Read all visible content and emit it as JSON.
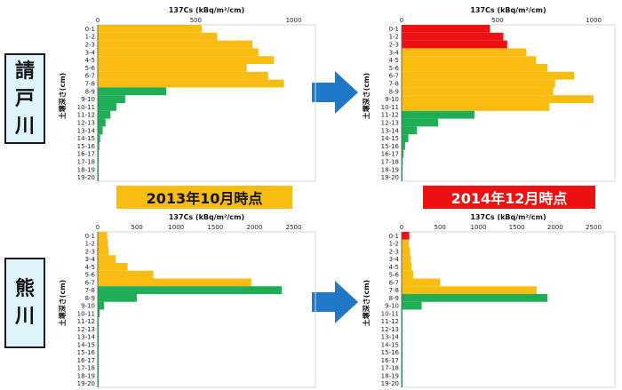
{
  "colors": {
    "yellow": "#f9bd12",
    "green": "#1fae55",
    "red": "#ee1111",
    "arrow": "#1f78c8",
    "frame": "#d6d6d6"
  },
  "rivers": [
    {
      "chars": [
        "請",
        "戸",
        "川"
      ]
    },
    {
      "chars": [
        "熊",
        "川"
      ]
    }
  ],
  "periods": [
    {
      "label": "2013年10月時点",
      "bg": "#f9bd12",
      "fg": "#111111"
    },
    {
      "label": "2014年12月時点",
      "bg": "#ee1111",
      "fg": "#ffffff"
    }
  ],
  "chart_data": [
    {
      "type": "bar",
      "orientation": "horizontal",
      "title": "137Cs (kBq/m²/cm)",
      "ylabel": "土壌深さ(cm)",
      "xlim": [
        0,
        1000
      ],
      "xticks": [
        0,
        500,
        1000
      ],
      "categories": [
        "0-1",
        "1-2",
        "2-3",
        "3-4",
        "4-5",
        "5-6",
        "6-7",
        "7-8",
        "8-9",
        "9-10",
        "10-11",
        "11-12",
        "12-13",
        "13-14",
        "14-15",
        "15-16",
        "16-17",
        "17-18",
        "18-19",
        "19-20"
      ],
      "values": [
        530,
        610,
        790,
        820,
        900,
        760,
        870,
        950,
        350,
        140,
        95,
        65,
        40,
        25,
        12,
        8,
        5,
        3,
        2,
        1
      ],
      "colors": [
        "yellow",
        "yellow",
        "yellow",
        "yellow",
        "yellow",
        "yellow",
        "yellow",
        "yellow",
        "green",
        "green",
        "green",
        "green",
        "green",
        "green",
        "green",
        "green",
        "green",
        "green",
        "green",
        "green"
      ]
    },
    {
      "type": "bar",
      "orientation": "horizontal",
      "title": "137Cs (kBq/m²/cm)",
      "ylabel": "土壌深さ(cm)",
      "xlim": [
        0,
        1000
      ],
      "xticks": [
        0,
        500,
        1000
      ],
      "categories": [
        "0-1",
        "1-2",
        "2-3",
        "3-4",
        "4-5",
        "5-6",
        "6-7",
        "7-8",
        "8-9",
        "9-10",
        "10-11",
        "11-12",
        "12-13",
        "13-14",
        "14-15",
        "15-16",
        "16-17",
        "17-18",
        "18-19",
        "19-20"
      ],
      "values": [
        460,
        530,
        550,
        650,
        700,
        760,
        900,
        800,
        790,
        1000,
        770,
        380,
        190,
        80,
        35,
        18,
        10,
        6,
        4,
        2
      ],
      "colors": [
        "red",
        "red",
        "red",
        "yellow",
        "yellow",
        "yellow",
        "yellow",
        "yellow",
        "yellow",
        "yellow",
        "yellow",
        "green",
        "green",
        "green",
        "green",
        "green",
        "green",
        "green",
        "green",
        "green"
      ]
    },
    {
      "type": "bar",
      "orientation": "horizontal",
      "title": "137Cs (kBq/m²/cm)",
      "ylabel": "土壌深さ(cm)",
      "xlim": [
        0,
        2500
      ],
      "xticks": [
        0,
        500,
        1000,
        1500,
        2000,
        2500
      ],
      "categories": [
        "0-1",
        "1-2",
        "2-3",
        "3-4",
        "4-5",
        "5-6",
        "6-7",
        "7-8",
        "8-9",
        "9-10",
        "10-11",
        "11-12",
        "12-13",
        "13-14",
        "14-15",
        "15-16",
        "16-17",
        "17-18",
        "18-19",
        "19-20"
      ],
      "values": [
        120,
        130,
        140,
        230,
        380,
        710,
        1960,
        2350,
        500,
        80,
        25,
        12,
        6,
        4,
        3,
        2,
        2,
        1,
        1,
        1
      ],
      "colors": [
        "yellow",
        "yellow",
        "yellow",
        "yellow",
        "yellow",
        "yellow",
        "yellow",
        "green",
        "green",
        "green",
        "green",
        "green",
        "green",
        "green",
        "green",
        "green",
        "green",
        "green",
        "green",
        "green"
      ]
    },
    {
      "type": "bar",
      "orientation": "horizontal",
      "title": "137Cs (kBq/m²/cm)",
      "ylabel": "土壌深さ(cm)",
      "xlim": [
        0,
        2500
      ],
      "xticks": [
        0,
        500,
        1000,
        1500,
        2000,
        2500
      ],
      "categories": [
        "0-1",
        "1-2",
        "2-3",
        "3-4",
        "4-5",
        "5-6",
        "6-7",
        "7-8",
        "8-9",
        "9-10",
        "10-11",
        "11-12",
        "12-13",
        "13-14",
        "14-15",
        "15-16",
        "16-17",
        "17-18",
        "18-19",
        "19-20"
      ],
      "values": [
        100,
        95,
        110,
        120,
        130,
        150,
        500,
        1760,
        1900,
        260,
        12,
        6,
        4,
        3,
        2,
        2,
        1,
        1,
        1,
        1
      ],
      "colors": [
        "red",
        "yellow",
        "yellow",
        "yellow",
        "yellow",
        "yellow",
        "yellow",
        "yellow",
        "green",
        "green",
        "green",
        "green",
        "green",
        "green",
        "green",
        "green",
        "green",
        "green",
        "green",
        "green"
      ]
    }
  ]
}
